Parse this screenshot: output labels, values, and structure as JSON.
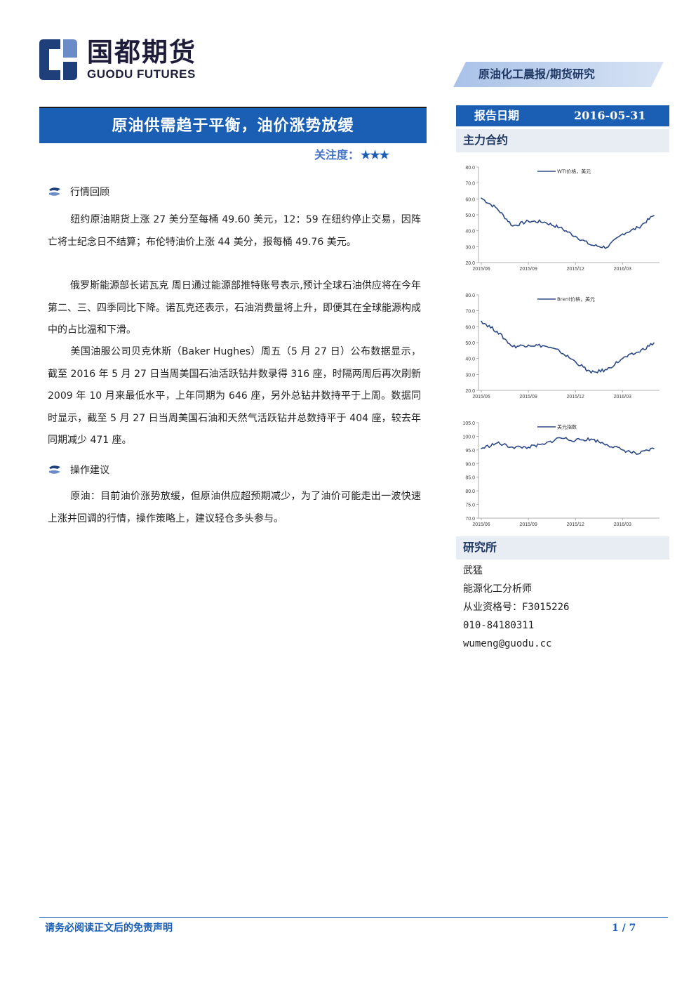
{
  "brand": {
    "name_cn": "国都期货",
    "name_en": "GUODU FUTURES"
  },
  "report_type": "原油化工晨报/期货研究",
  "headline": "原油供需趋于平衡，油价涨势放缓",
  "attention": {
    "label": "关注度：",
    "stars": "★★★"
  },
  "report_date": {
    "label": "报告日期",
    "value": "2016-05-31"
  },
  "sections": {
    "review": {
      "title": "行情回顾",
      "paragraphs": [
        "纽约原油期货上涨 27 美分至每桶 49.60 美元，12：59 在纽约停止交易，因阵亡将士纪念日不结算；布伦特油价上涨 44 美分，报每桶 49.76 美元。",
        "俄罗斯能源部长诺瓦克 周日通过能源部推特账号表示,预计全球石油供应将在今年第二、三、四季同比下降。诺瓦克还表示，石油消费量将上升，即便其在全球能源构成中的占比温和下滑。",
        "美国油服公司贝克休斯（Baker Hughes）周五（5 月 27 日）公布数据显示，截至 2016 年 5 月 27 日当周美国石油活跃钻井数录得 316 座，时隔两周后再次刷新 2009 年 10 月来最低水平，上年同期为 646 座，另外总钻井数持平于上周。数据同时显示，截至 5 月 27 日当周美国石油和天然气活跃钻井总数持平于 404 座，较去年同期减少 471 座。"
      ]
    },
    "advice": {
      "title": "操作建议",
      "paragraphs": [
        "原油：目前油价涨势放缓，但原油供应超预期减少，为了油价可能走出一波快速上涨并回调的行情，操作策略上，建议轻仓多头参与。"
      ]
    }
  },
  "sidebar": {
    "contracts_title": "主力合约",
    "research_title": "研究所",
    "analyst": {
      "name": "武猛",
      "title": "能源化工分析师",
      "license": "从业资格号：F3015226",
      "phone": "010-84180311",
      "email": "wumeng@guodu.cc"
    }
  },
  "chart_data": [
    {
      "type": "line",
      "series": [
        {
          "name": "WTI价格，美元",
          "x": [
            "2015-06",
            "2015-07",
            "2015-08",
            "2015-09",
            "2015-10",
            "2015-11",
            "2015-12",
            "2016-01",
            "2016-02",
            "2016-03",
            "2016-04",
            "2016-05"
          ],
          "values": [
            60.5,
            54.0,
            43.0,
            46.0,
            45.5,
            42.0,
            36.5,
            31.0,
            29.5,
            38.0,
            42.0,
            49.6
          ]
        }
      ],
      "xticks": [
        "2015/06",
        "2015/09",
        "2015/12",
        "2016/03"
      ],
      "yticks": [
        "20.0",
        "30.0",
        "40.0",
        "50.0",
        "60.0",
        "70.0",
        "80.0"
      ],
      "ylim": [
        20,
        80
      ],
      "color": "#2e4a86",
      "legend": "top"
    },
    {
      "type": "line",
      "series": [
        {
          "name": "Brent价格，美元",
          "x": [
            "2015-06",
            "2015-07",
            "2015-08",
            "2015-09",
            "2015-10",
            "2015-11",
            "2015-12",
            "2016-01",
            "2016-02",
            "2016-03",
            "2016-04",
            "2016-05"
          ],
          "values": [
            63.5,
            57.0,
            47.5,
            48.5,
            48.0,
            44.5,
            38.0,
            31.0,
            33.0,
            40.0,
            44.0,
            49.8
          ]
        }
      ],
      "xticks": [
        "2015/06",
        "2015/09",
        "2015/12",
        "2016/03"
      ],
      "yticks": [
        "20.0",
        "30.0",
        "40.0",
        "50.0",
        "60.0",
        "70.0",
        "80.0"
      ],
      "ylim": [
        20,
        80
      ],
      "color": "#2e4a86",
      "legend": "top"
    },
    {
      "type": "line",
      "series": [
        {
          "name": "美元指数",
          "x": [
            "2015-06",
            "2015-07",
            "2015-08",
            "2015-09",
            "2015-10",
            "2015-11",
            "2015-12",
            "2016-01",
            "2016-02",
            "2016-03",
            "2016-04",
            "2016-05"
          ],
          "values": [
            95.5,
            97.5,
            96.0,
            96.0,
            97.0,
            99.5,
            98.5,
            99.0,
            97.0,
            95.0,
            93.5,
            95.5
          ]
        }
      ],
      "xticks": [
        "2015/06",
        "2015/09",
        "2015/12",
        "2016/03"
      ],
      "yticks": [
        "70.0",
        "75.0",
        "80.0",
        "85.0",
        "90.0",
        "95.0",
        "100.0",
        "105.0"
      ],
      "ylim": [
        70,
        105
      ],
      "color": "#2e4a86",
      "legend": "top"
    }
  ],
  "footer": {
    "disclaimer": "请务必阅读正文后的免责声明",
    "page": "1 / 7"
  }
}
